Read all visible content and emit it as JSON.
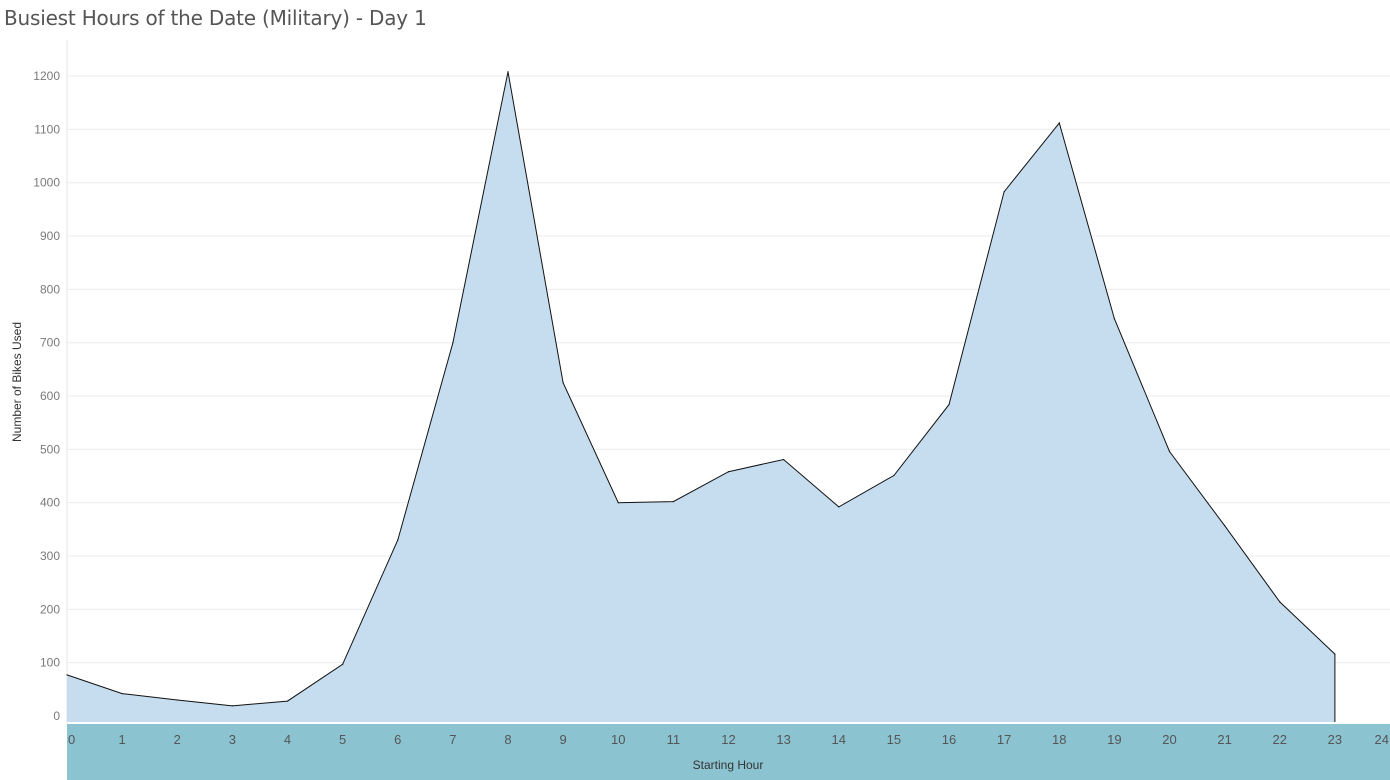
{
  "chart_data": {
    "type": "area",
    "title": "Busiest Hours of the Date (Military) - Day 1",
    "xlabel": "Starting Hour",
    "ylabel": "Number of Bikes Used",
    "x": [
      0,
      1,
      2,
      3,
      4,
      5,
      6,
      7,
      8,
      9,
      10,
      11,
      12,
      13,
      14,
      15,
      16,
      17,
      18,
      19,
      20,
      21,
      22,
      23
    ],
    "values": [
      77,
      42,
      30,
      19,
      28,
      97,
      330,
      700,
      1208,
      625,
      400,
      402,
      458,
      481,
      392,
      451,
      584,
      983,
      1112,
      745,
      496,
      357,
      214,
      116
    ],
    "xticks": [
      0,
      1,
      2,
      3,
      4,
      5,
      6,
      7,
      8,
      9,
      10,
      11,
      12,
      13,
      14,
      15,
      16,
      17,
      18,
      19,
      20,
      21,
      22,
      23,
      24
    ],
    "yticks": [
      0,
      100,
      200,
      300,
      400,
      500,
      600,
      700,
      800,
      900,
      1000,
      1100,
      1200
    ],
    "xlim": [
      0,
      24
    ],
    "ylim": [
      0,
      1215
    ],
    "grid": true,
    "fill_color": "#c5ddef",
    "line_color": "#111111",
    "axis_band_color": "#8bc3d1"
  }
}
